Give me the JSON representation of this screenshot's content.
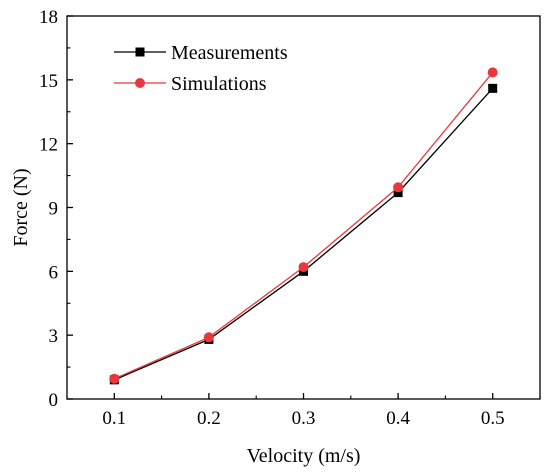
{
  "chart_data": {
    "type": "line",
    "xlabel": "Velocity (m/s)",
    "ylabel": "Force (N)",
    "x": [
      0.1,
      0.2,
      0.3,
      0.4,
      0.5
    ],
    "x_tick_labels": [
      "0.1",
      "0.2",
      "0.3",
      "0.4",
      "0.5"
    ],
    "xlim": [
      0.05,
      0.55
    ],
    "ylim": [
      0,
      18
    ],
    "y_ticks": [
      0,
      3,
      6,
      9,
      12,
      15,
      18
    ],
    "y_tick_labels": [
      "0",
      "3",
      "6",
      "9",
      "12",
      "15",
      "18"
    ],
    "grid": false,
    "legend_placement": "top-left",
    "series": [
      {
        "name": "Measurements",
        "values": [
          0.9,
          2.8,
          6.0,
          9.7,
          14.6
        ],
        "color": "#000000",
        "marker": "square"
      },
      {
        "name": "Simulations",
        "values": [
          0.95,
          2.9,
          6.2,
          9.95,
          15.35
        ],
        "color": "#e8383d",
        "marker": "circle"
      }
    ]
  }
}
